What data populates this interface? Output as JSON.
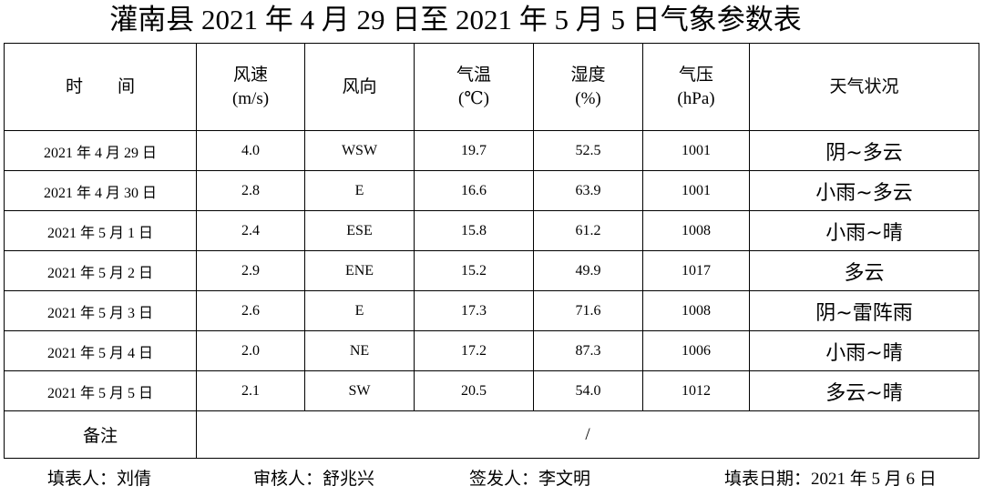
{
  "title": "灌南县 2021 年 4 月 29 日至 2021 年 5 月 5 日气象参数表",
  "table": {
    "header": [
      [
        "时　　间"
      ],
      [
        "风速",
        "(m/s)"
      ],
      [
        "风向"
      ],
      [
        "气温",
        "(℃)"
      ],
      [
        "湿度",
        "(%)"
      ],
      [
        "气压",
        "(hPa)"
      ],
      [
        "天气状况"
      ]
    ],
    "rows": [
      [
        "2021 年 4 月 29 日",
        "4.0",
        "WSW",
        "19.7",
        "52.5",
        "1001",
        "阴~多云"
      ],
      [
        "2021 年 4 月 30 日",
        "2.8",
        "E",
        "16.6",
        "63.9",
        "1001",
        "小雨~多云"
      ],
      [
        "2021 年 5 月 1 日",
        "2.4",
        "ESE",
        "15.8",
        "61.2",
        "1008",
        "小雨~晴"
      ],
      [
        "2021 年 5 月 2 日",
        "2.9",
        "ENE",
        "15.2",
        "49.9",
        "1017",
        "多云"
      ],
      [
        "2021 年 5 月 3 日",
        "2.6",
        "E",
        "17.3",
        "71.6",
        "1008",
        "阴~雷阵雨"
      ],
      [
        "2021 年 5 月 4 日",
        "2.0",
        "NE",
        "17.2",
        "87.3",
        "1006",
        "小雨~晴"
      ],
      [
        "2021 年 5 月 5 日",
        "2.1",
        "SW",
        "20.5",
        "54.0",
        "1012",
        "多云~晴"
      ]
    ],
    "note": {
      "label": "备注",
      "value": "/"
    }
  },
  "footer": [
    "填表人：刘倩",
    "审核人：舒兆兴",
    "签发人：李文明",
    "填表日期：2021 年 5 月 6 日"
  ]
}
